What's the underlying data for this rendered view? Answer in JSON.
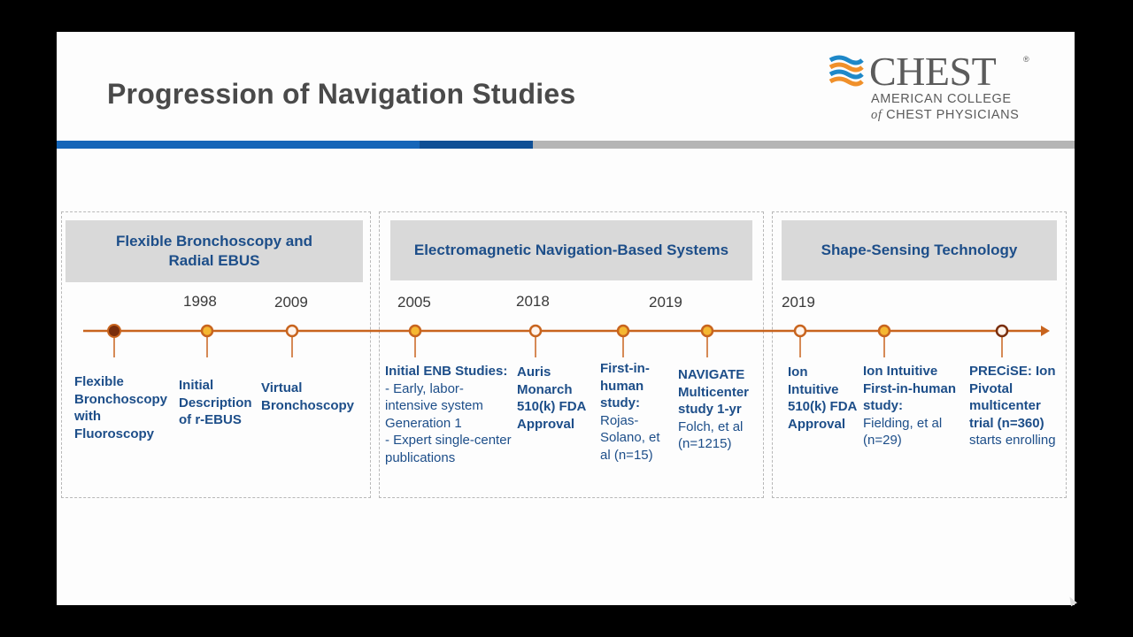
{
  "slide": {
    "title": "Progression of Navigation Studies",
    "logo": {
      "word": "CHEST",
      "reg": "®",
      "line1": "AMERICAN COLLEGE",
      "line2_of": "of",
      "line2_rest": " CHEST PHYSICIANS"
    },
    "colors": {
      "accent_blue": "#1565b8",
      "dark_blue": "#0f4f95",
      "gray_bar": "#b5b5b5",
      "timeline": "#c8641e",
      "header_text": "#1d4e89"
    },
    "sections": [
      {
        "title_line1": "Flexible Bronchoscopy and",
        "title_line2": "Radial EBUS"
      },
      {
        "title": "Electromagnetic Navigation-Based Systems"
      },
      {
        "title": "Shape-Sensing Technology"
      }
    ],
    "years": [
      "1998",
      "2009",
      "2005",
      "2018",
      "2019",
      "2019"
    ],
    "events": [
      {
        "bold": "Flexible Bronchoscopy with Fluoroscopy"
      },
      {
        "bold": "Initial Description of r-EBUS"
      },
      {
        "bold": "Virtual Bronchoscopy"
      },
      {
        "bold": "Initial ENB Studies:",
        "rest": "- Early, labor-intensive system Generation 1\n- Expert single-center publications"
      },
      {
        "bold": "Auris Monarch 510(k) FDA Approval"
      },
      {
        "bold": "First-in-human study:",
        "rest": "Rojas-Solano, et al (n=15)"
      },
      {
        "bold": "NAVIGATE Multicenter study 1-yr",
        "rest": "Folch, et al (n=1215)"
      },
      {
        "bold": "Ion Intuitive 510(k) FDA Approval"
      },
      {
        "bold": "Ion Intuitive First-in-human study:",
        "rest": "Fielding, et al (n=29)"
      },
      {
        "bold": "PRECiSE: Ion Pivotal multicenter trial (n=360)",
        "rest": "starts enrolling"
      }
    ]
  }
}
